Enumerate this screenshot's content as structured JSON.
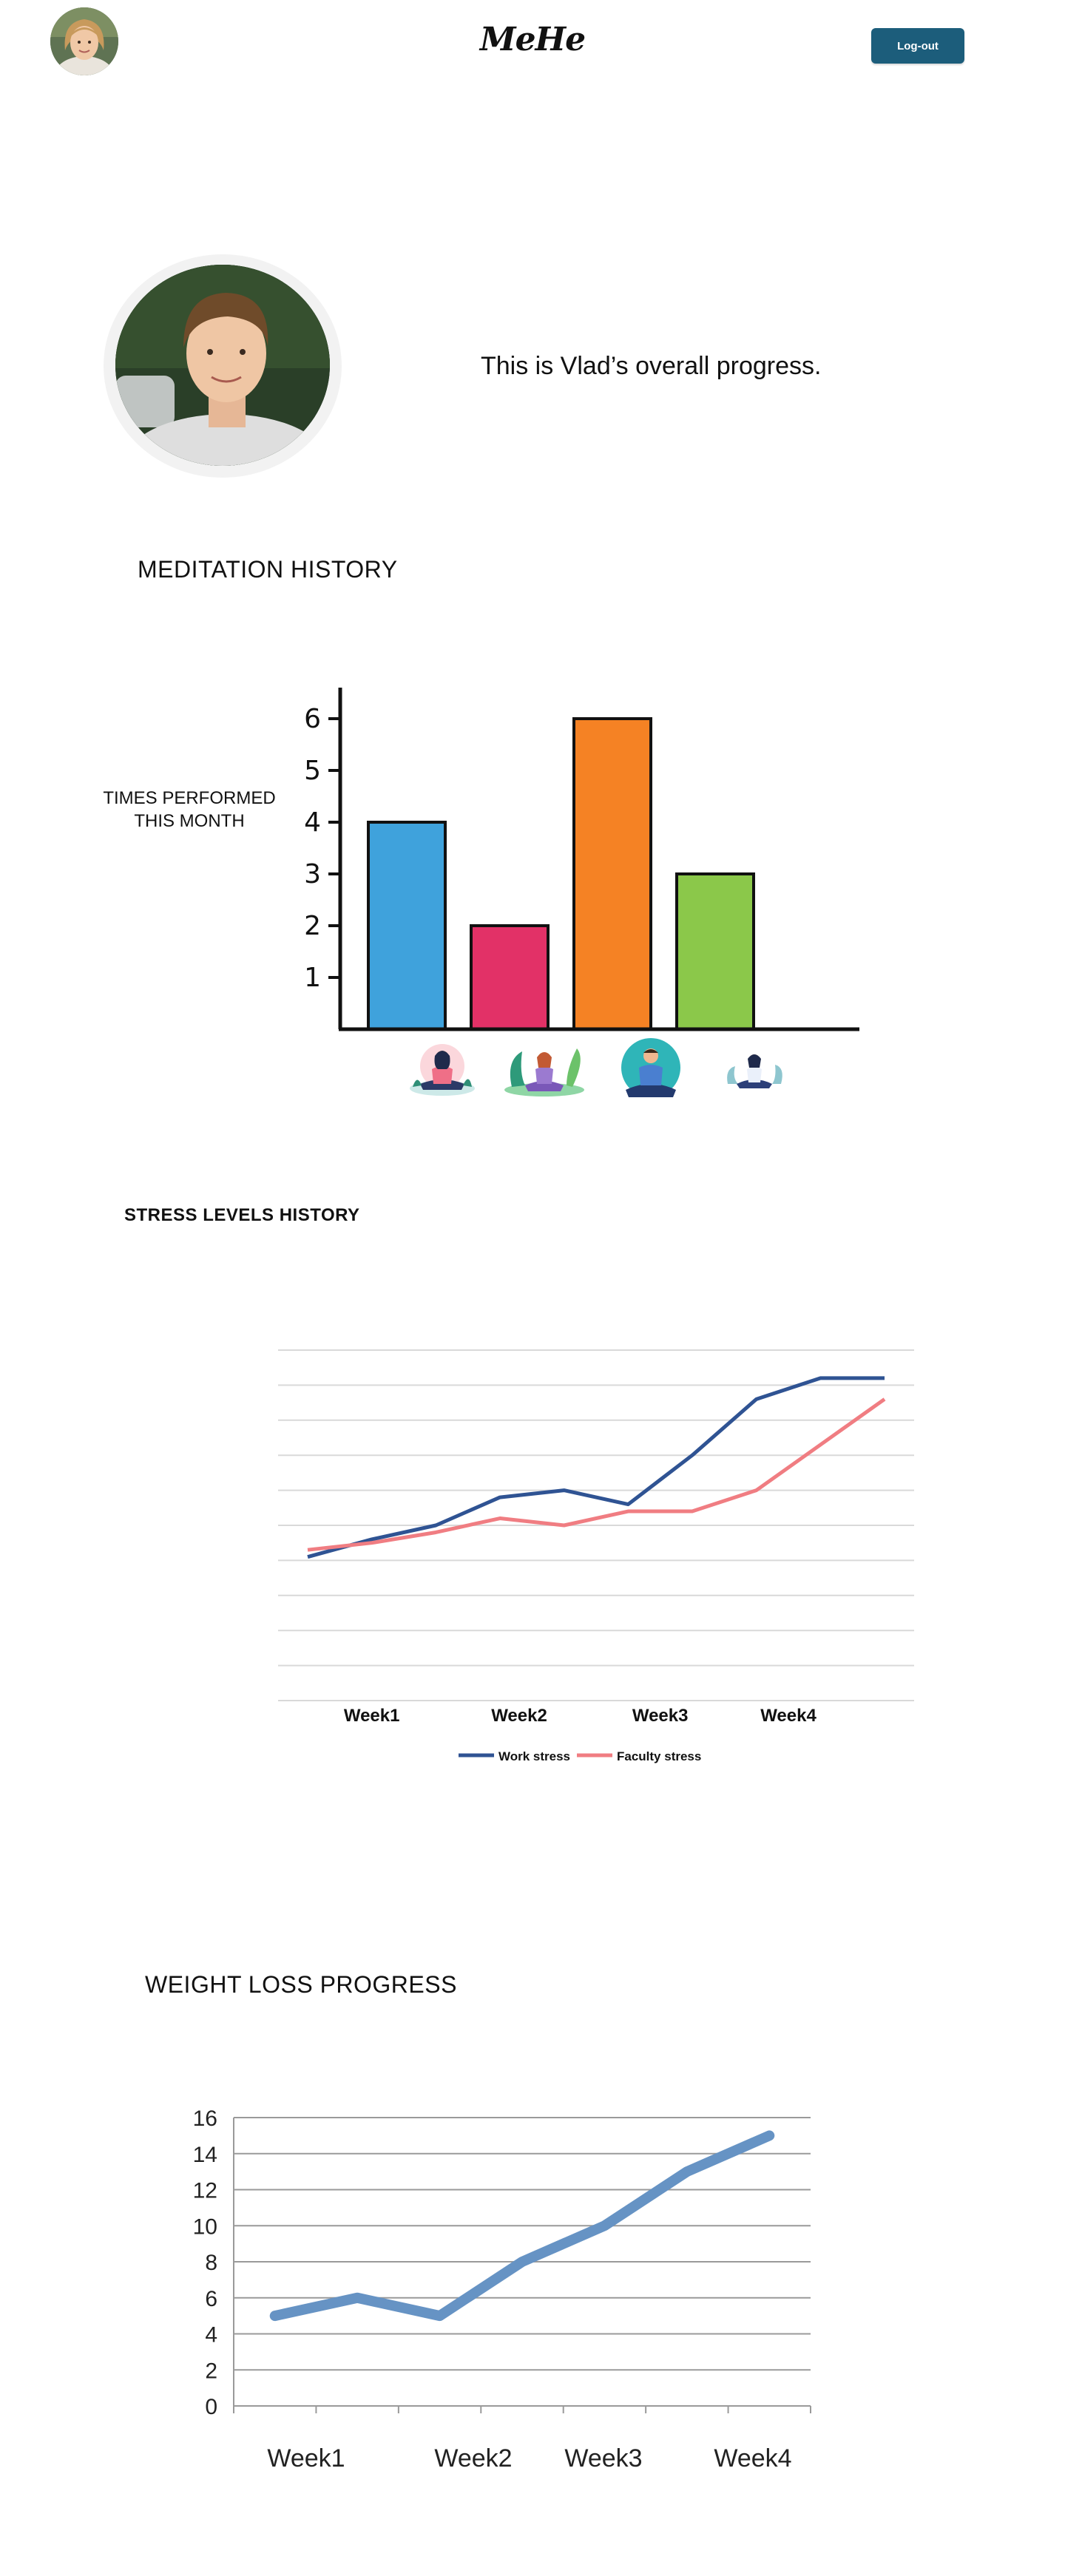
{
  "header": {
    "logo": "MeHe",
    "logout_label": "Log-out"
  },
  "profile": {
    "progress_text": "This is Vlad’s overall progress."
  },
  "meditation": {
    "title": "MEDITATION HISTORY",
    "ylabel_line1": "TIMES PERFORMED",
    "ylabel_line2": "THIS MONTH"
  },
  "stress": {
    "title": "STRESS LEVELS HISTORY"
  },
  "weight": {
    "title": "WEIGHT LOSS PROGRESS"
  },
  "chart_data": [
    {
      "type": "bar",
      "categories": [
        "",
        "",
        "",
        ""
      ],
      "category_icons": [
        "meditation-woman-pink-icon",
        "meditation-woman-leaves-icon",
        "meditation-man-teal-icon",
        "meditation-woman-blue-icon"
      ],
      "values": [
        4,
        2,
        6,
        3
      ],
      "colors": [
        "#3fa2dc",
        "#e23167",
        "#f58224",
        "#8bc84a"
      ],
      "ylabel": "TIMES PERFORMED THIS MONTH",
      "yticks": [
        1,
        2,
        3,
        4,
        5,
        6
      ],
      "ylim": [
        0,
        6.6
      ],
      "grid": false
    },
    {
      "type": "line",
      "x_points": 10,
      "x_tick_labels": [
        "Week1",
        "Week2",
        "Week3",
        "Week4"
      ],
      "series": [
        {
          "name": "Work stress",
          "color": "#2f5393",
          "values": [
            4.1,
            4.6,
            5.0,
            5.8,
            6.0,
            5.6,
            7.0,
            8.6,
            9.2,
            9.2
          ]
        },
        {
          "name": "Faculty stress",
          "color": "#f07d82",
          "values": [
            4.3,
            4.5,
            4.8,
            5.2,
            5.0,
            5.4,
            5.4,
            6.0,
            7.3,
            8.6
          ]
        }
      ],
      "ylim": [
        0,
        10
      ],
      "grid": true,
      "legend": "bottom"
    },
    {
      "type": "line",
      "x_tick_labels": [
        "Week1",
        "Week2",
        "Week3",
        "Week4"
      ],
      "series": [
        {
          "color": "#6693c4",
          "values": [
            5,
            6,
            5,
            8,
            10,
            13,
            15
          ]
        }
      ],
      "yticks": [
        0,
        2,
        4,
        6,
        8,
        10,
        12,
        14,
        16
      ],
      "ylim": [
        0,
        16
      ],
      "grid": true
    }
  ]
}
